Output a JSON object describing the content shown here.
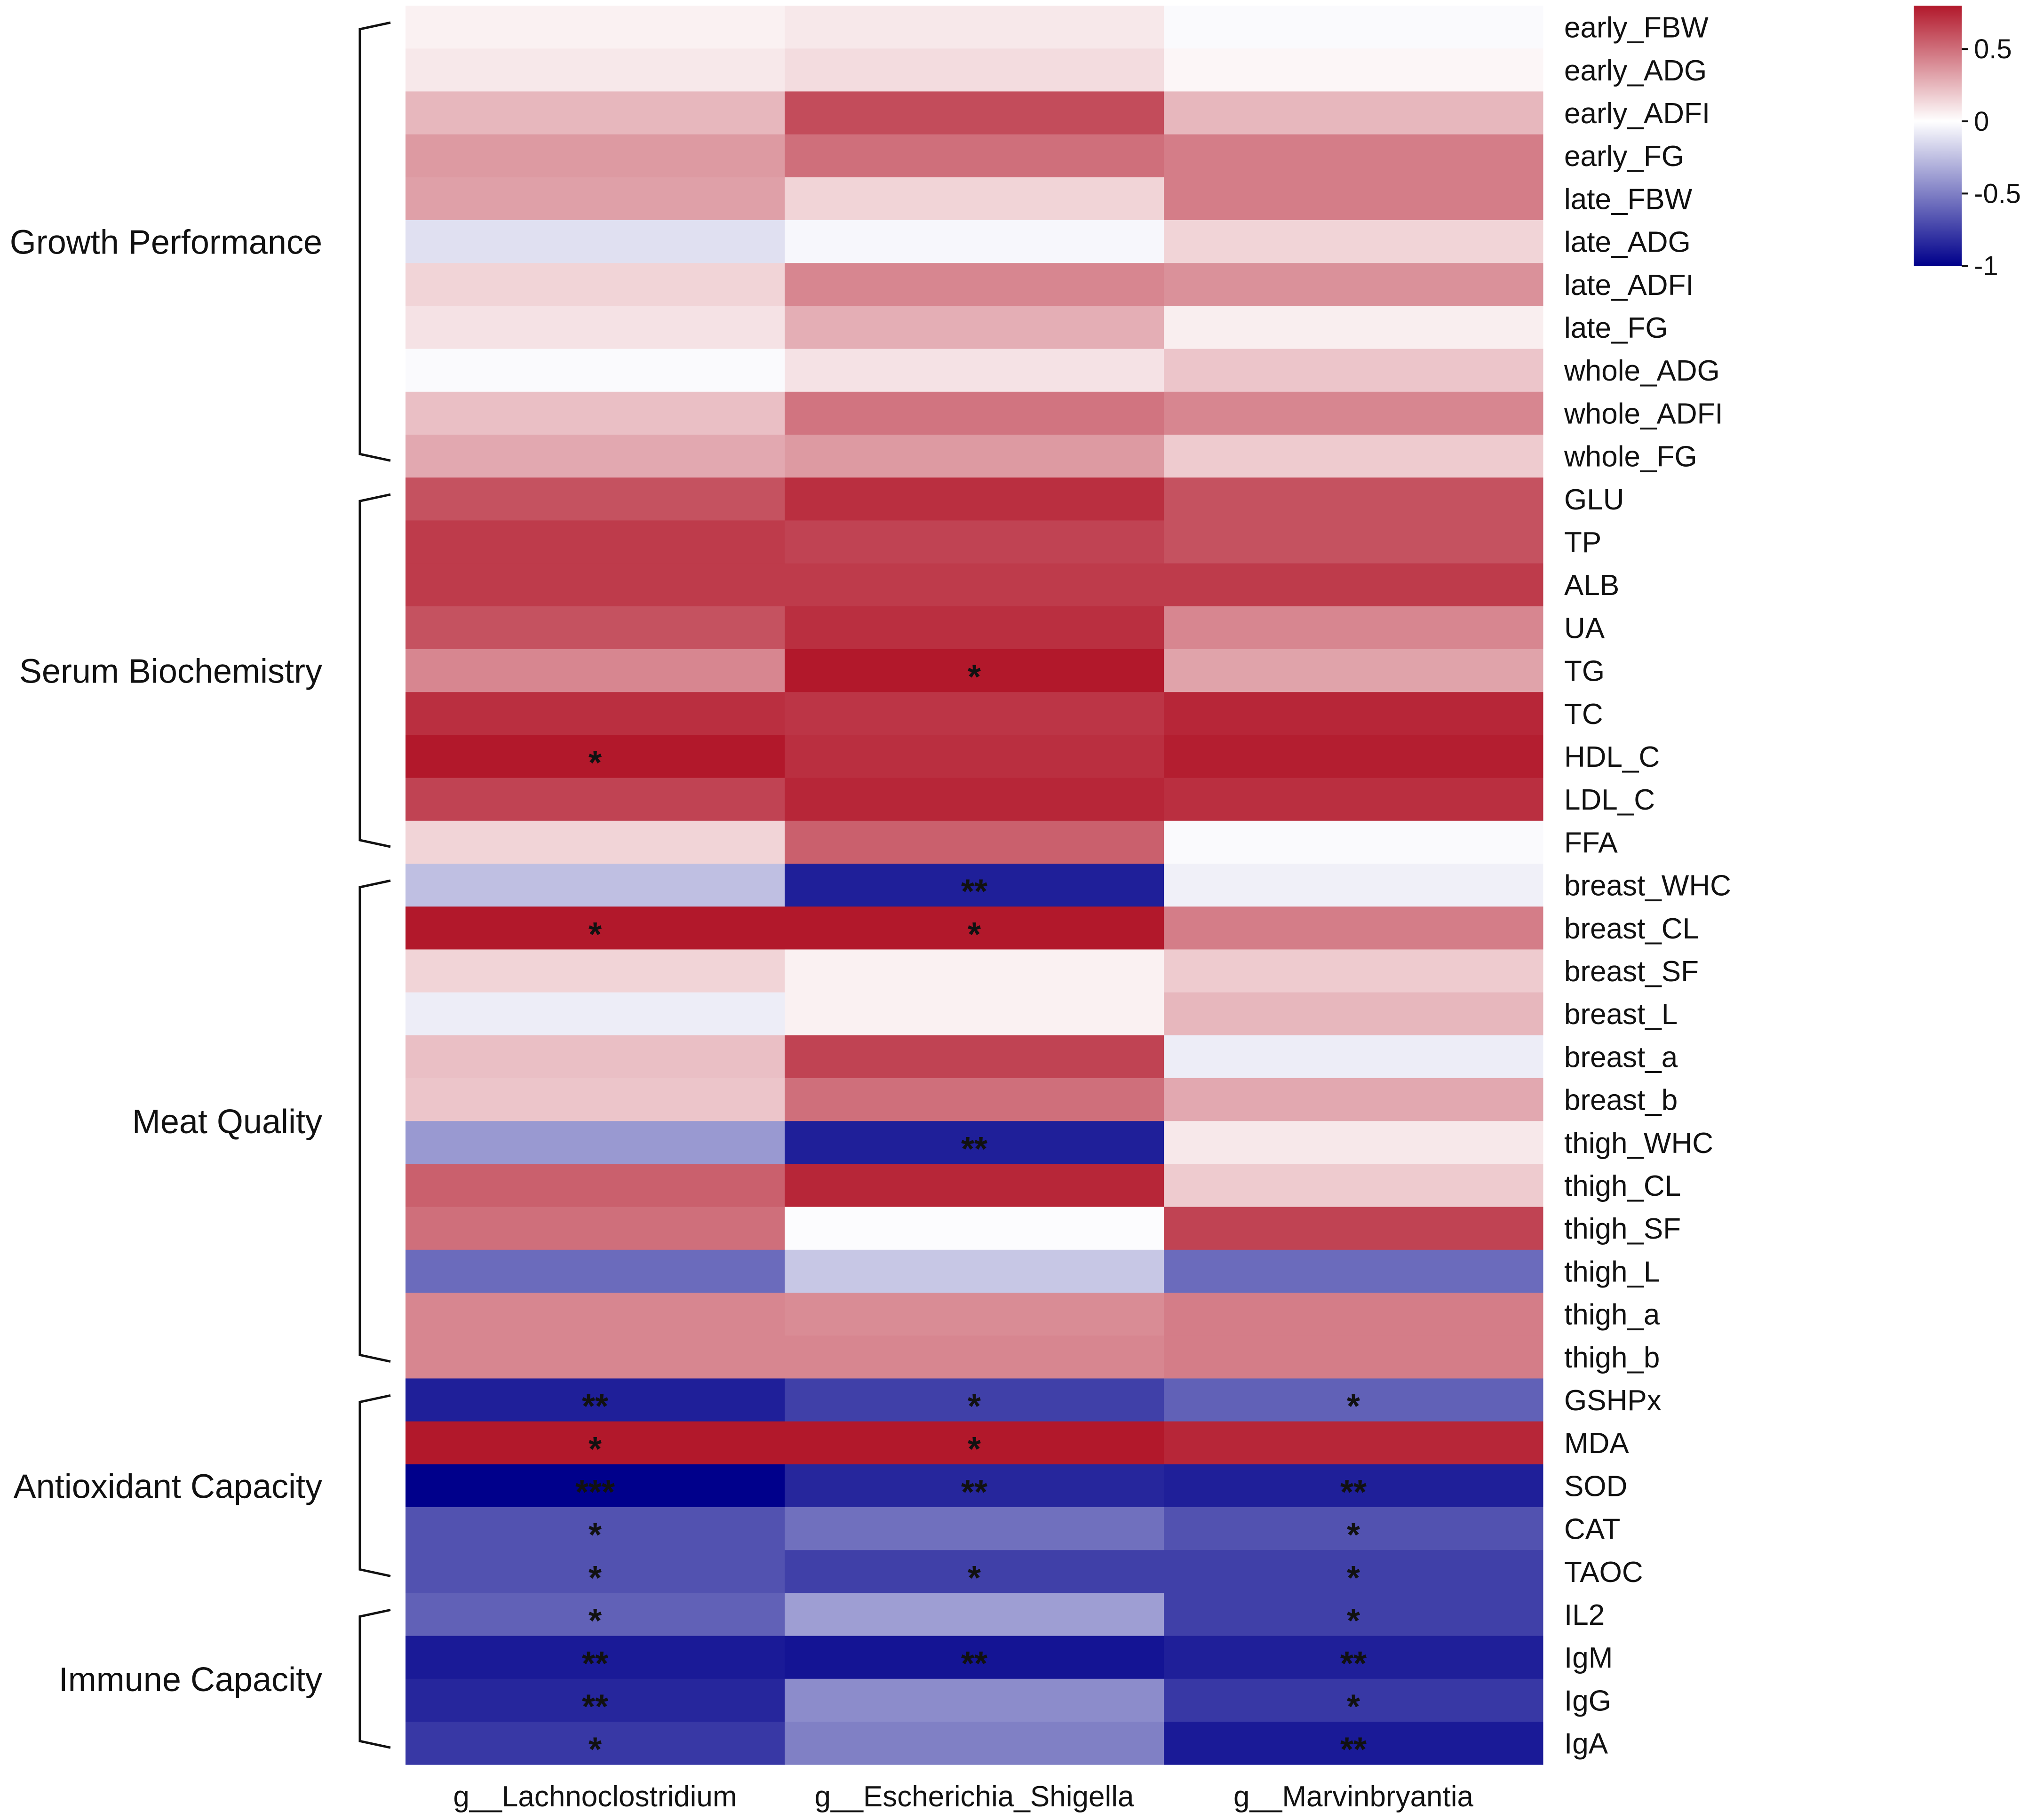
{
  "chart_data": {
    "type": "heatmap",
    "title": "",
    "columns": [
      "g__Lachnoclostridium",
      "g__Escherichia_Shigella",
      "g__Marvinbryantia"
    ],
    "rows": [
      "early_FBW",
      "early_ADG",
      "early_ADFI",
      "early_FG",
      "late_FBW",
      "late_ADG",
      "late_ADFI",
      "late_FG",
      "whole_ADG",
      "whole_ADFI",
      "whole_FG",
      "GLU",
      "TP",
      "ALB",
      "UA",
      "TG",
      "TC",
      "HDL_C",
      "LDL_C",
      "FFA",
      "breast_WHC",
      "breast_CL",
      "breast_SF",
      "breast_L",
      "breast_a",
      "breast_b",
      "thigh_WHC",
      "thigh_CL",
      "thigh_SF",
      "thigh_L",
      "thigh_a",
      "thigh_b",
      "GSHPx",
      "MDA",
      "SOD",
      "CAT",
      "TAOC",
      "IL2",
      "IgM",
      "IgG",
      "IgA"
    ],
    "values": [
      [
        0.05,
        0.08,
        -0.02
      ],
      [
        0.08,
        0.12,
        0.03
      ],
      [
        0.25,
        0.62,
        0.25
      ],
      [
        0.35,
        0.5,
        0.45
      ],
      [
        0.33,
        0.15,
        0.45
      ],
      [
        -0.12,
        -0.03,
        0.15
      ],
      [
        0.15,
        0.42,
        0.38
      ],
      [
        0.1,
        0.28,
        0.06
      ],
      [
        -0.02,
        0.1,
        0.2
      ],
      [
        0.22,
        0.48,
        0.42
      ],
      [
        0.3,
        0.35,
        0.18
      ],
      [
        0.6,
        0.72,
        0.6
      ],
      [
        0.68,
        0.65,
        0.6
      ],
      [
        0.68,
        0.68,
        0.68
      ],
      [
        0.6,
        0.72,
        0.42
      ],
      [
        0.42,
        0.85,
        0.32
      ],
      [
        0.72,
        0.7,
        0.75
      ],
      [
        0.92,
        0.72,
        0.78
      ],
      [
        0.65,
        0.75,
        0.72
      ],
      [
        0.15,
        0.55,
        -0.02
      ],
      [
        -0.25,
        -0.88,
        -0.06
      ],
      [
        0.9,
        0.82,
        0.45
      ],
      [
        0.15,
        0.05,
        0.18
      ],
      [
        -0.07,
        0.05,
        0.25
      ],
      [
        0.22,
        0.65,
        -0.07
      ],
      [
        0.2,
        0.5,
        0.3
      ],
      [
        -0.4,
        -0.88,
        0.08
      ],
      [
        0.55,
        0.75,
        0.18
      ],
      [
        0.5,
        -0.01,
        0.65
      ],
      [
        -0.58,
        -0.22,
        -0.58
      ],
      [
        0.42,
        0.4,
        0.45
      ],
      [
        0.42,
        0.42,
        0.45
      ],
      [
        -0.88,
        -0.75,
        -0.62
      ],
      [
        0.92,
        0.88,
        0.75
      ],
      [
        -1.0,
        -0.85,
        -0.88
      ],
      [
        -0.68,
        -0.56,
        -0.68
      ],
      [
        -0.68,
        -0.75,
        -0.75
      ],
      [
        -0.62,
        -0.38,
        -0.75
      ],
      [
        -0.9,
        -0.92,
        -0.88
      ],
      [
        -0.85,
        -0.45,
        -0.78
      ],
      [
        -0.78,
        -0.5,
        -0.9
      ]
    ],
    "significance": [
      [
        "",
        "",
        ""
      ],
      [
        "",
        "",
        ""
      ],
      [
        "",
        "",
        ""
      ],
      [
        "",
        "",
        ""
      ],
      [
        "",
        "",
        ""
      ],
      [
        "",
        "",
        ""
      ],
      [
        "",
        "",
        ""
      ],
      [
        "",
        "",
        ""
      ],
      [
        "",
        "",
        ""
      ],
      [
        "",
        "",
        ""
      ],
      [
        "",
        "",
        ""
      ],
      [
        "",
        "",
        ""
      ],
      [
        "",
        "",
        ""
      ],
      [
        "",
        "",
        ""
      ],
      [
        "",
        "",
        ""
      ],
      [
        "",
        "*",
        ""
      ],
      [
        "",
        "",
        ""
      ],
      [
        "*",
        "",
        ""
      ],
      [
        "",
        "",
        ""
      ],
      [
        "",
        "",
        ""
      ],
      [
        "",
        "**",
        ""
      ],
      [
        "*",
        "*",
        ""
      ],
      [
        "",
        "",
        ""
      ],
      [
        "",
        "",
        ""
      ],
      [
        "",
        "",
        ""
      ],
      [
        "",
        "",
        ""
      ],
      [
        "",
        "**",
        ""
      ],
      [
        "",
        "",
        ""
      ],
      [
        "",
        "",
        ""
      ],
      [
        "",
        "",
        ""
      ],
      [
        "",
        "",
        ""
      ],
      [
        "",
        "",
        ""
      ],
      [
        "**",
        "*",
        "*"
      ],
      [
        "*",
        "*",
        ""
      ],
      [
        "***",
        "**",
        "**"
      ],
      [
        "*",
        "",
        "*"
      ],
      [
        "*",
        "*",
        "*"
      ],
      [
        "*",
        "",
        "*"
      ],
      [
        "**",
        "**",
        "**"
      ],
      [
        "**",
        "",
        "*"
      ],
      [
        "*",
        "",
        "**"
      ]
    ],
    "groups": [
      {
        "label": "Growth Performance",
        "start": 0,
        "end": 10
      },
      {
        "label": "Serum Biochemistry",
        "start": 11,
        "end": 19
      },
      {
        "label": "Meat Quality",
        "start": 20,
        "end": 31
      },
      {
        "label": "Antioxidant Capacity",
        "start": 32,
        "end": 36
      },
      {
        "label": "Immune Capacity",
        "start": 37,
        "end": 40
      }
    ],
    "colorbar": {
      "min": -1,
      "max": 0.8,
      "ticks": [
        {
          "value": 0.5,
          "label": "0.5"
        },
        {
          "value": 0,
          "label": "0"
        },
        {
          "value": -0.5,
          "label": "-0.5"
        },
        {
          "value": -1,
          "label": "-1"
        }
      ],
      "colors": {
        "low": "#00008b",
        "mid": "#ffffff",
        "high": "#b2182b"
      }
    }
  }
}
